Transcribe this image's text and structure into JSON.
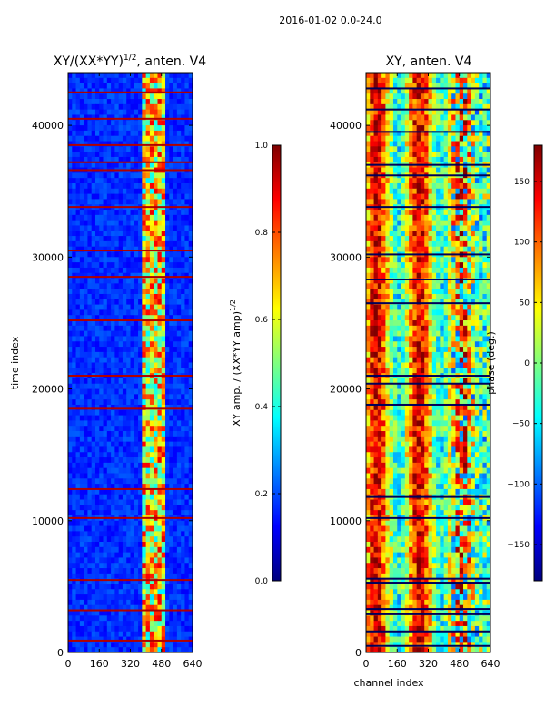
{
  "suptitle": "2016-01-02 0.0-24.0",
  "colors": {
    "background": "#ffffff",
    "jet": [
      "#00007f",
      "#0000ff",
      "#007fff",
      "#00ffff",
      "#7fff7f",
      "#ffff00",
      "#ff7f00",
      "#ff0000",
      "#7f0000"
    ]
  },
  "chart_data": [
    {
      "type": "heatmap",
      "title": "XY/(XX*YY)",
      "title_sup": "1/2",
      "title_suffix": ", anten. V4",
      "xlabel": "",
      "ylabel": "time index",
      "xlim": [
        0,
        640
      ],
      "ylim": [
        0,
        44000
      ],
      "xticks": [
        0,
        160,
        320,
        480,
        640
      ],
      "yticks": [
        0,
        10000,
        20000,
        30000,
        40000
      ],
      "bright_columns": [
        410,
        465
      ],
      "saturated_rows": [
        900,
        3200,
        5500,
        10200,
        12400,
        18500,
        21000,
        25200,
        28500,
        30500,
        33800,
        36600,
        37200,
        38500,
        40500,
        42500
      ],
      "colorbar": {
        "label": "XY amp. / (XX*YY amp)",
        "label_sup": "1/2",
        "range": [
          0.0,
          1.0
        ],
        "ticks": [
          "0.0",
          "0.2",
          "0.4",
          "0.6",
          "0.8",
          "1.0"
        ],
        "tick_values": [
          0.0,
          0.2,
          0.4,
          0.6,
          0.8,
          1.0
        ]
      }
    },
    {
      "type": "heatmap",
      "title": "XY, anten. V4",
      "xlabel": "channel index",
      "ylabel": "",
      "xlim": [
        0,
        640
      ],
      "ylim": [
        0,
        44000
      ],
      "xticks": [
        0,
        160,
        320,
        480,
        640
      ],
      "yticks": [
        0,
        10000,
        20000,
        30000,
        40000
      ],
      "dark_rows": [
        500,
        1600,
        2900,
        3300,
        5300,
        5600,
        10200,
        11800,
        18800,
        20400,
        21000,
        26500,
        28300,
        30200,
        33800,
        36200,
        37000,
        39500,
        41200,
        42800
      ],
      "colorbar": {
        "label": "phase (deg.)",
        "range": [
          -180,
          180
        ],
        "ticks": [
          "−150",
          "−100",
          "−50",
          "0",
          "50",
          "100",
          "150"
        ],
        "tick_values": [
          -150,
          -100,
          -50,
          0,
          50,
          100,
          150
        ]
      }
    }
  ]
}
